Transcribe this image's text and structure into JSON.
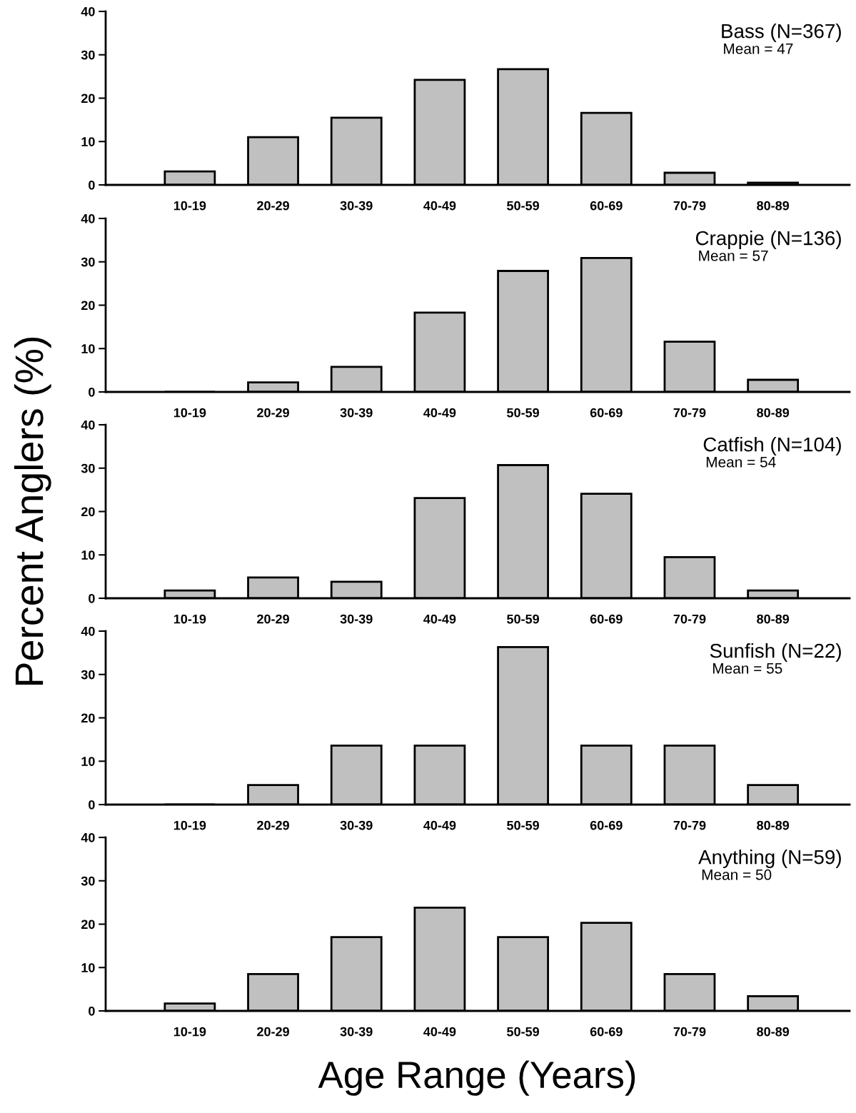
{
  "chart_data": [
    {
      "type": "bar",
      "title": "Bass (N=367)",
      "subtitle": "Mean = 47",
      "categories": [
        "10-19",
        "20-29",
        "30-39",
        "40-49",
        "50-59",
        "60-69",
        "70-79",
        "80-89"
      ],
      "values": [
        3.1,
        11.0,
        15.5,
        24.2,
        26.7,
        16.6,
        2.8,
        0.5
      ],
      "color": "#c0c0c0",
      "ylim": [
        0,
        40
      ],
      "yticks": [
        0,
        10,
        20,
        30,
        40
      ],
      "grid": false
    },
    {
      "type": "bar",
      "title": "Crappie (N=136)",
      "subtitle": "Mean = 57",
      "categories": [
        "10-19",
        "20-29",
        "30-39",
        "40-49",
        "50-59",
        "60-69",
        "70-79",
        "80-89"
      ],
      "values": [
        0,
        2.2,
        5.8,
        18.3,
        27.9,
        30.9,
        11.6,
        2.8
      ],
      "color": "#c0c0c0",
      "ylim": [
        0,
        40
      ],
      "yticks": [
        0,
        10,
        20,
        30,
        40
      ],
      "grid": false
    },
    {
      "type": "bar",
      "title": "Catfish (N=104)",
      "subtitle": "Mean = 54",
      "ylabel": "Percent Anglers (%)",
      "categories": [
        "10-19",
        "20-29",
        "30-39",
        "40-49",
        "50-59",
        "60-69",
        "70-79",
        "80-89"
      ],
      "values": [
        1.8,
        4.8,
        3.8,
        23.1,
        30.7,
        24.1,
        9.5,
        1.8
      ],
      "color": "#c0c0c0",
      "ylim": [
        0,
        40
      ],
      "yticks": [
        0,
        10,
        20,
        30,
        40
      ],
      "grid": false
    },
    {
      "type": "bar",
      "title": "Sunfish (N=22)",
      "subtitle": "Mean = 55",
      "categories": [
        "10-19",
        "20-29",
        "30-39",
        "40-49",
        "50-59",
        "60-69",
        "70-79",
        "80-89"
      ],
      "values": [
        0,
        4.5,
        13.6,
        13.6,
        36.3,
        13.6,
        13.6,
        4.5
      ],
      "color": "#c0c0c0",
      "ylim": [
        0,
        40
      ],
      "yticks": [
        0,
        10,
        20,
        30,
        40
      ],
      "grid": false
    },
    {
      "type": "bar",
      "title": "Anything (N=59)",
      "subtitle": "Mean = 50",
      "xlabel": "Age Range (Years)",
      "categories": [
        "10-19",
        "20-29",
        "30-39",
        "40-49",
        "50-59",
        "60-69",
        "70-79",
        "80-89"
      ],
      "values": [
        1.7,
        8.5,
        17.0,
        23.8,
        17.0,
        20.3,
        8.5,
        3.4
      ],
      "color": "#c0c0c0",
      "ylim": [
        0,
        40
      ],
      "yticks": [
        0,
        10,
        20,
        30,
        40
      ],
      "grid": false
    }
  ]
}
